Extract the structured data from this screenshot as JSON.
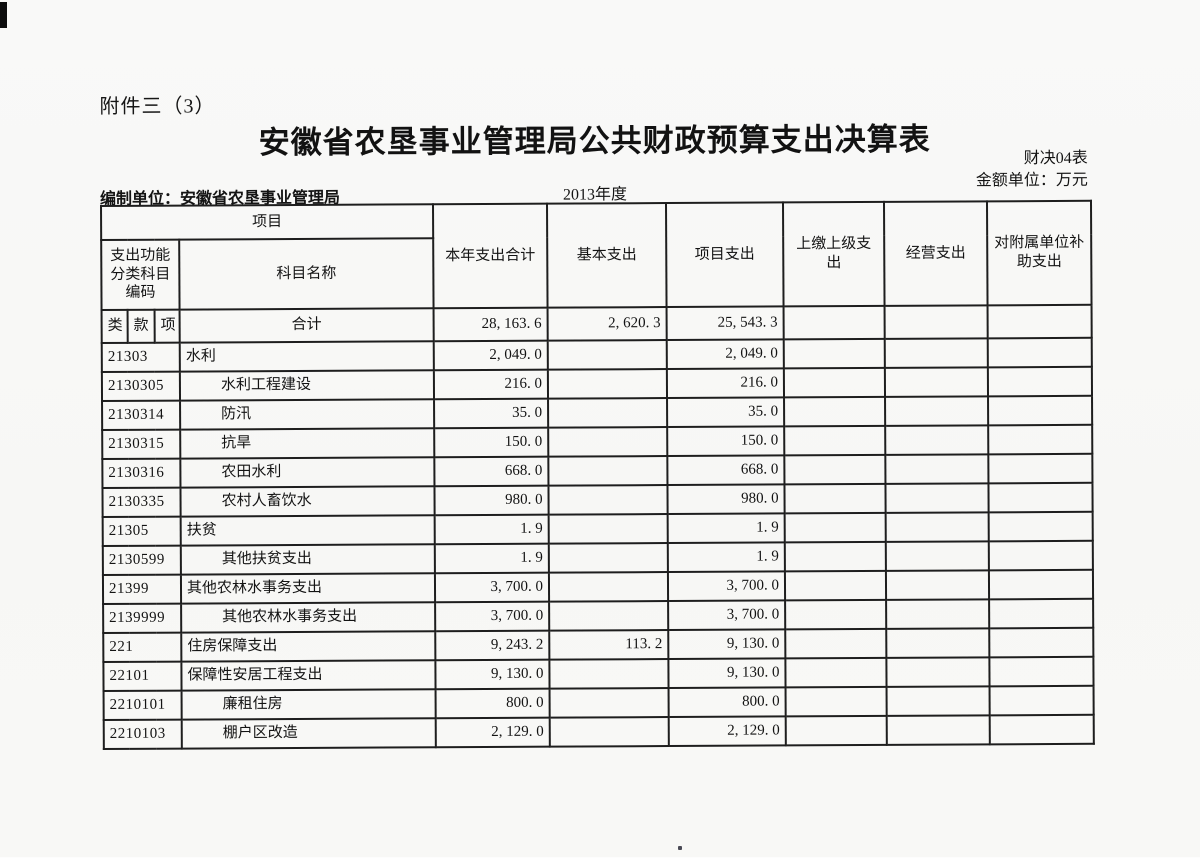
{
  "page": {
    "attachment_label": "附件三（3）",
    "title": "安徽省农垦事业管理局公共财政预算支出决算表",
    "form_code": "财决04表",
    "unit_note": "金额单位：万元",
    "prepared_by": "编制单位：安徽省农垦事业管理局",
    "year": "2013年度"
  },
  "table": {
    "header": {
      "project_group": "项目",
      "code_header": "支出功能\n分类科目\n编码",
      "code_sub": [
        "类",
        "款",
        "项"
      ],
      "name_header": "科目名称",
      "value_headers": [
        "本年支出合计",
        "基本支出",
        "项目支出",
        "上缴上级支出",
        "经营支出",
        "对附属单位补助支出"
      ]
    },
    "total_row": {
      "name": "合计",
      "values": [
        "28, 163. 6",
        "2, 620. 3",
        "25, 543. 3",
        "",
        "",
        ""
      ]
    },
    "rows": [
      {
        "code": "21303",
        "name": "水利",
        "indent": 0,
        "values": [
          "2, 049. 0",
          "",
          "2, 049. 0",
          "",
          "",
          ""
        ]
      },
      {
        "code": "2130305",
        "name": "水利工程建设",
        "indent": 1,
        "values": [
          "216. 0",
          "",
          "216. 0",
          "",
          "",
          ""
        ]
      },
      {
        "code": "2130314",
        "name": "防汛",
        "indent": 1,
        "values": [
          "35. 0",
          "",
          "35. 0",
          "",
          "",
          ""
        ]
      },
      {
        "code": "2130315",
        "name": "抗旱",
        "indent": 1,
        "values": [
          "150. 0",
          "",
          "150. 0",
          "",
          "",
          ""
        ]
      },
      {
        "code": "2130316",
        "name": "农田水利",
        "indent": 1,
        "values": [
          "668. 0",
          "",
          "668. 0",
          "",
          "",
          ""
        ]
      },
      {
        "code": "2130335",
        "name": "农村人畜饮水",
        "indent": 1,
        "values": [
          "980. 0",
          "",
          "980. 0",
          "",
          "",
          ""
        ]
      },
      {
        "code": "21305",
        "name": "扶贫",
        "indent": 0,
        "values": [
          "1. 9",
          "",
          "1. 9",
          "",
          "",
          ""
        ]
      },
      {
        "code": "2130599",
        "name": "其他扶贫支出",
        "indent": 1,
        "values": [
          "1. 9",
          "",
          "1. 9",
          "",
          "",
          ""
        ]
      },
      {
        "code": "21399",
        "name": "其他农林水事务支出",
        "indent": 0,
        "values": [
          "3, 700. 0",
          "",
          "3, 700. 0",
          "",
          "",
          ""
        ]
      },
      {
        "code": "2139999",
        "name": "其他农林水事务支出",
        "indent": 1,
        "values": [
          "3, 700. 0",
          "",
          "3, 700. 0",
          "",
          "",
          ""
        ]
      },
      {
        "code": "221",
        "name": "住房保障支出",
        "indent": 0,
        "values": [
          "9, 243. 2",
          "113. 2",
          "9, 130. 0",
          "",
          "",
          ""
        ]
      },
      {
        "code": "22101",
        "name": "保障性安居工程支出",
        "indent": 0,
        "values": [
          "9, 130. 0",
          "",
          "9, 130. 0",
          "",
          "",
          ""
        ]
      },
      {
        "code": "2210101",
        "name": "廉租住房",
        "indent": 1,
        "values": [
          "800. 0",
          "",
          "800. 0",
          "",
          "",
          ""
        ]
      },
      {
        "code": "2210103",
        "name": "棚户区改造",
        "indent": 1,
        "values": [
          "2, 129. 0",
          "",
          "2, 129. 0",
          "",
          "",
          ""
        ]
      }
    ]
  }
}
